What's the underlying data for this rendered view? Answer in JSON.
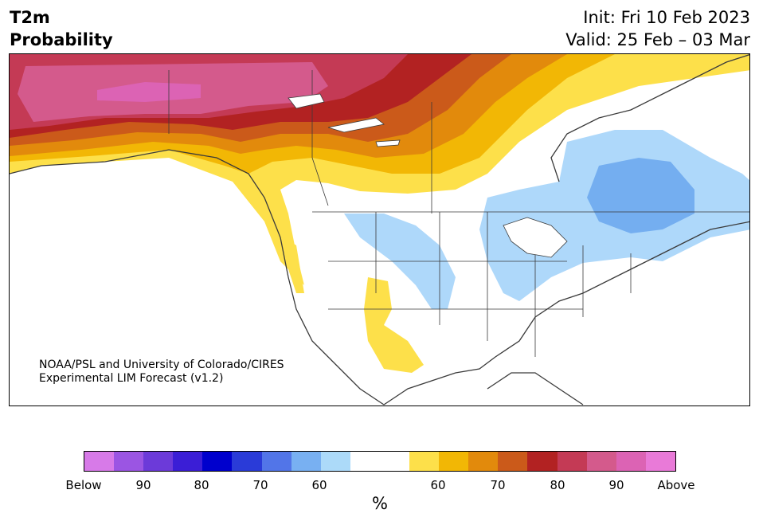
{
  "header": {
    "title_line1": "T2m",
    "title_line2": "Probability",
    "init": "Init: Fri 10 Feb 2023",
    "valid": "Valid: 25 Feb – 03 Mar"
  },
  "credit": {
    "line1": "NOAA/PSL and University of Colorado/CIRES",
    "line2": "Experimental LIM Forecast (v1.2)"
  },
  "map": {
    "region": "North America",
    "colors": {
      "above_60": "#fde04a",
      "above_65": "#f2b705",
      "above_70": "#e28a0c",
      "above_75": "#cb5a1a",
      "above_80": "#b22222",
      "above_85": "#c43a55",
      "above_90": "#d45a8c",
      "below_60": "#aed8fa",
      "below_65": "#74aef0",
      "border": "#3a3a3a"
    }
  },
  "colorbar": {
    "colors": [
      "#d77ae8",
      "#9b55e3",
      "#6c3ad9",
      "#3b1ed6",
      "#0000cd",
      "#2a3bd8",
      "#5275e8",
      "#78b0f2",
      "#acdaf9",
      "#ffffff",
      "#ffffff",
      "#fde04a",
      "#f2b705",
      "#e28a0c",
      "#cb5a1a",
      "#b22222",
      "#c43a55",
      "#d45a8c",
      "#dc63b4",
      "#e97ad8"
    ],
    "labels": [
      "Below",
      "90",
      "80",
      "70",
      "60",
      "60",
      "70",
      "80",
      "90",
      "Above"
    ],
    "unit": "%"
  }
}
